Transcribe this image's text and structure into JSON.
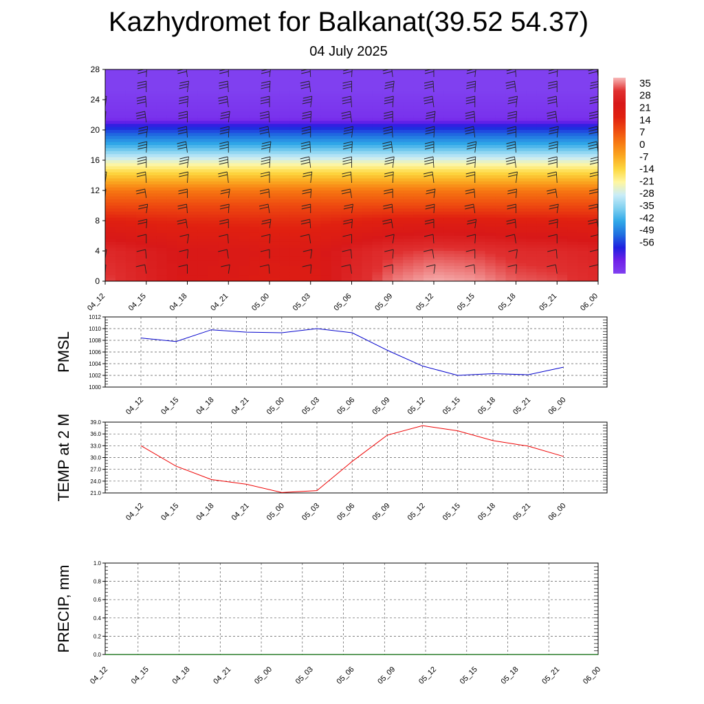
{
  "header": {
    "title": "Kazhydromet for Balkanat(39.52 54.37)",
    "date": "04 July 2025"
  },
  "colors": {
    "pmsl_line": "#0000cc",
    "temp_line": "#ee0000",
    "precip_line": "#006400",
    "grid": "#555555",
    "barb": "#222222"
  },
  "chart_data": [
    {
      "type": "heatmap",
      "name_hint": "height-time temperature cross-section with wind barbs",
      "x": [
        "04_12",
        "04_15",
        "04_18",
        "04_21",
        "05_00",
        "05_03",
        "05_06",
        "05_09",
        "05_12",
        "05_15",
        "05_18",
        "05_21",
        "06_00"
      ],
      "y_ticks": [
        "0",
        "4",
        "8",
        "12",
        "16",
        "20",
        "24",
        "28"
      ],
      "ylim": [
        0,
        28
      ],
      "colorbar_labels": [
        "35",
        "28",
        "21",
        "14",
        "7",
        "0",
        "-7",
        "-14",
        "-21",
        "-28",
        "-35",
        "-42",
        "-49",
        "-56"
      ],
      "colorbar_colors": [
        "#f8b8b8",
        "#e03030",
        "#d81818",
        "#e02010",
        "#ee4a10",
        "#f77a12",
        "#fba820",
        "#fdd840",
        "#fff6a0",
        "#c8ecf8",
        "#80d0f0",
        "#30a8e8",
        "#2070e0",
        "#2020e0",
        "#7020e8",
        "#8040f0"
      ],
      "profile_levels": [
        0,
        4,
        8,
        12,
        14.5,
        16,
        18,
        20.5,
        21.5,
        28
      ],
      "profile_temps": [
        30,
        28,
        18,
        5,
        -10,
        -20,
        -35,
        -50,
        -60,
        -65
      ],
      "surface_temps": [
        33,
        28,
        24,
        23,
        21,
        21.5,
        29,
        35.5,
        38,
        37,
        34,
        33,
        30
      ],
      "grid": false
    },
    {
      "type": "line",
      "ylabel": "PMSL",
      "x": [
        "04_12",
        "04_15",
        "04_18",
        "04_21",
        "05_00",
        "05_03",
        "05_06",
        "05_09",
        "05_12",
        "05_15",
        "05_18",
        "05_21",
        "06_00"
      ],
      "series": [
        {
          "values": [
            1008.4,
            1007.8,
            1009.8,
            1009.4,
            1009.3,
            1010.0,
            1009.3,
            1006.3,
            1003.6,
            1002.0,
            1002.3,
            1002.1,
            1003.4
          ]
        }
      ],
      "ylim": [
        1000,
        1012
      ],
      "y_ticks": [
        "1000",
        "1002",
        "1004",
        "1006",
        "1008",
        "1010",
        "1012"
      ],
      "grid": true
    },
    {
      "type": "line",
      "ylabel": "TEMP at 2 M",
      "x": [
        "04_12",
        "04_15",
        "04_18",
        "04_21",
        "05_00",
        "05_03",
        "05_06",
        "05_09",
        "05_12",
        "05_15",
        "05_18",
        "05_21",
        "06_00"
      ],
      "series": [
        {
          "values": [
            33.0,
            27.8,
            24.4,
            23.2,
            21.1,
            21.6,
            29.0,
            35.7,
            38.1,
            36.8,
            34.3,
            32.9,
            30.3
          ]
        }
      ],
      "ylim": [
        21,
        39
      ],
      "y_ticks": [
        "21.0",
        "24.0",
        "27.0",
        "30.0",
        "33.0",
        "36.0",
        "39.0"
      ],
      "grid": true
    },
    {
      "type": "line",
      "ylabel": "PRECIP, mm",
      "x": [
        "04_12",
        "04_15",
        "04_18",
        "04_21",
        "05_00",
        "05_03",
        "05_06",
        "05_09",
        "05_12",
        "05_15",
        "05_18",
        "05_21",
        "06_00"
      ],
      "series": [
        {
          "values": [
            0,
            0,
            0,
            0,
            0,
            0,
            0,
            0,
            0,
            0,
            0,
            0,
            0
          ]
        }
      ],
      "ylim": [
        0,
        1
      ],
      "y_ticks": [
        "0.0",
        "0.2",
        "0.4",
        "0.6",
        "0.8",
        "1.0"
      ],
      "grid": true
    }
  ]
}
